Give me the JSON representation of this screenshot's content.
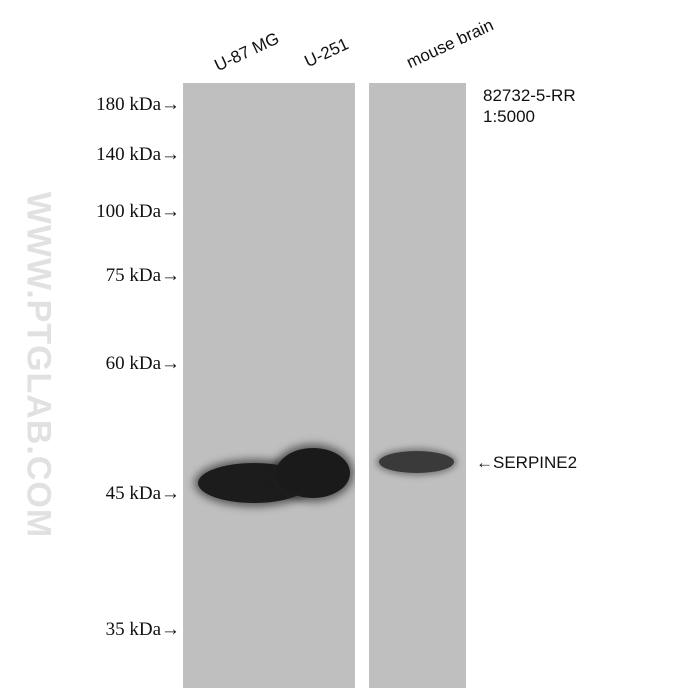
{
  "lanes": [
    "U-87 MG",
    "U-251",
    "mouse brain"
  ],
  "markers": [
    "180 kDa→",
    "140 kDa→",
    "100 kDa→",
    "75 kDa→",
    "60 kDa→",
    "45 kDa→",
    "35 kDa→"
  ],
  "antibody": {
    "catalog": "82732-5-RR",
    "dilution": "1:5000"
  },
  "target": "←SERPINE2",
  "watermark": "WWW.PTGLAB.COM",
  "colors": {
    "membrane": "#bfbfbf",
    "band": "#1a1a1a"
  }
}
